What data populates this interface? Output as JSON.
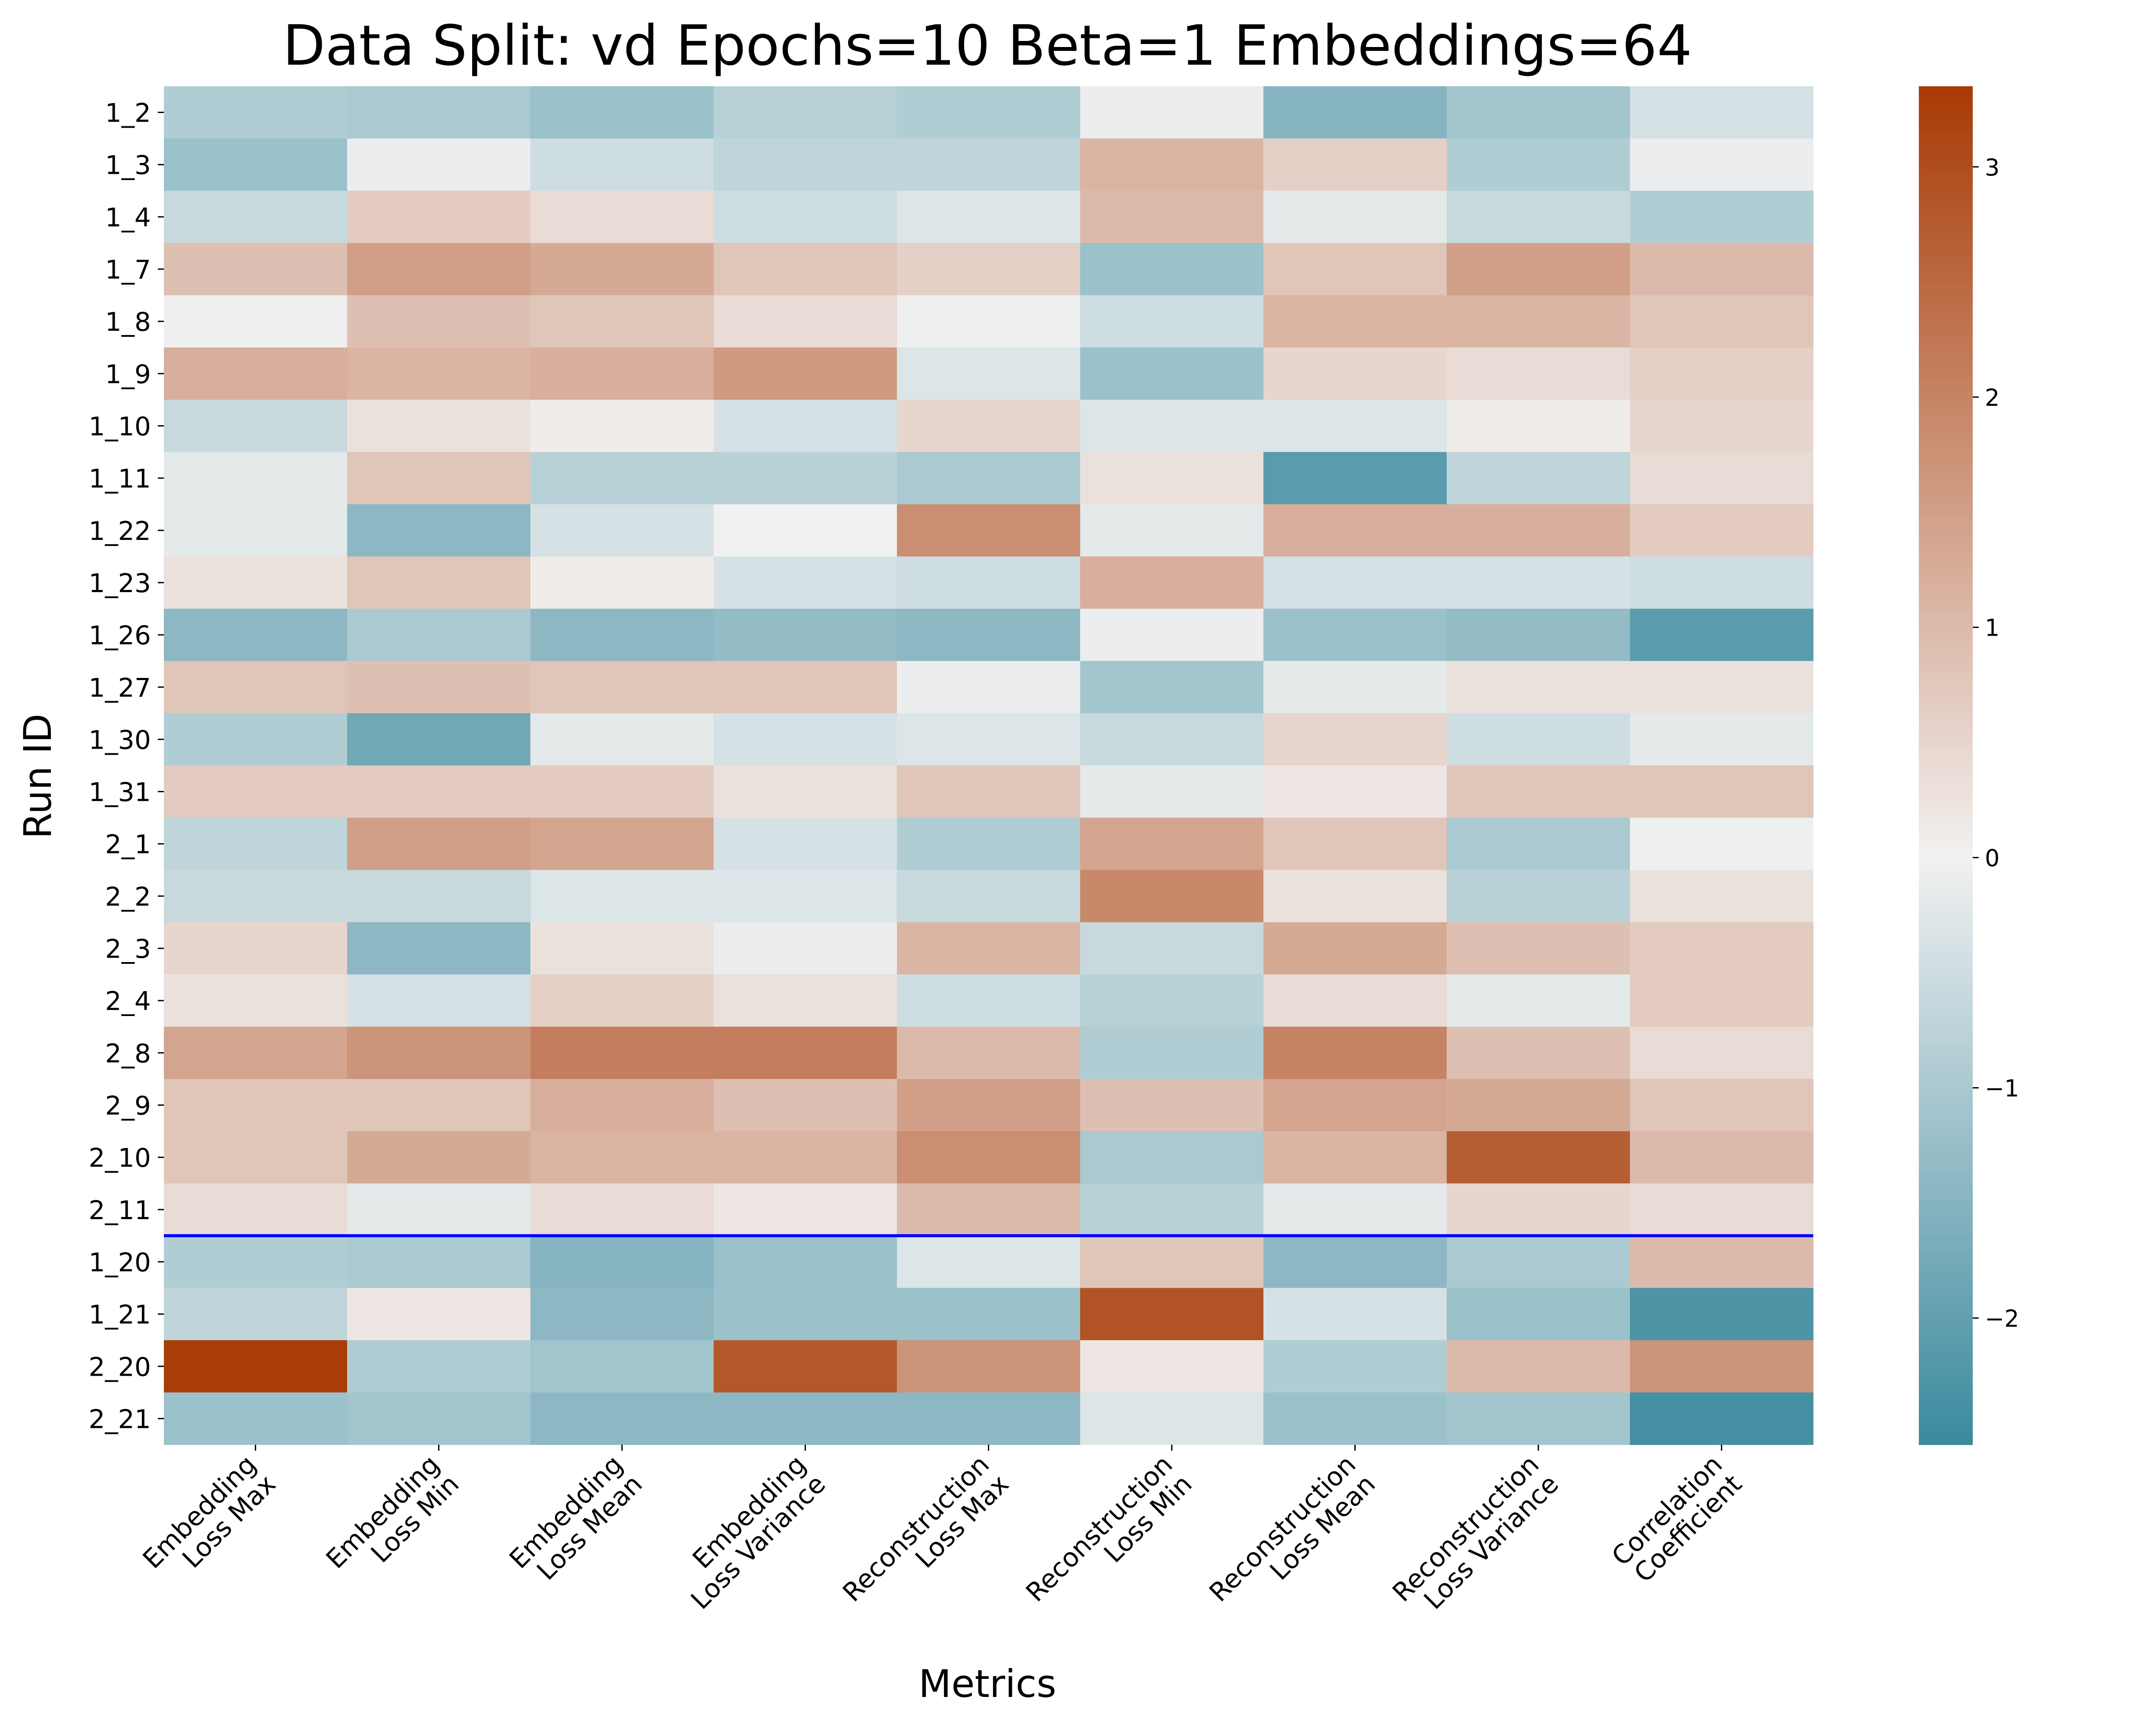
{
  "chart_data": {
    "type": "heatmap",
    "title": "Data Split: vd Epochs=10 Beta=1 Embeddings=64",
    "xlabel": "Metrics",
    "ylabel": "Run ID",
    "grid": false,
    "legend": "colorbar-right",
    "columns": [
      [
        "Embedding",
        "Loss Max"
      ],
      [
        "Embedding",
        "Loss Min"
      ],
      [
        "Embedding",
        "Loss Mean"
      ],
      [
        "Embedding",
        "Loss Variance"
      ],
      [
        "Reconstruction",
        "Loss Max"
      ],
      [
        "Reconstruction",
        "Loss Min"
      ],
      [
        "Reconstruction",
        "Loss Mean"
      ],
      [
        "Reconstruction",
        "Loss Variance"
      ],
      [
        "Correlation",
        "Coefficient"
      ]
    ],
    "rows": [
      "1_2",
      "1_3",
      "1_4",
      "1_7",
      "1_8",
      "1_9",
      "1_10",
      "1_11",
      "1_22",
      "1_23",
      "1_26",
      "1_27",
      "1_30",
      "1_31",
      "2_1",
      "2_2",
      "2_3",
      "2_4",
      "2_8",
      "2_9",
      "2_10",
      "2_11",
      "1_20",
      "1_21",
      "2_20",
      "2_21"
    ],
    "values": [
      [
        -0.9,
        -1.0,
        -1.2,
        -0.8,
        -0.9,
        -0.1,
        -1.5,
        -1.1,
        -0.4
      ],
      [
        -1.2,
        -0.1,
        -0.5,
        -0.7,
        -0.7,
        1.1,
        0.6,
        -0.9,
        -0.1
      ],
      [
        -0.6,
        0.7,
        0.4,
        -0.5,
        -0.3,
        1.0,
        -0.2,
        -0.6,
        -0.9
      ],
      [
        0.9,
        1.5,
        1.3,
        0.8,
        0.6,
        -1.2,
        0.8,
        1.5,
        1.0
      ],
      [
        -0.05,
        0.9,
        0.8,
        0.4,
        -0.05,
        -0.5,
        1.1,
        1.1,
        0.8
      ],
      [
        1.2,
        1.1,
        1.2,
        1.6,
        -0.3,
        -1.2,
        0.5,
        0.4,
        0.6
      ],
      [
        -0.6,
        0.3,
        0.1,
        -0.4,
        0.5,
        -0.3,
        -0.3,
        0.1,
        0.5
      ],
      [
        -0.2,
        0.8,
        -0.8,
        -0.8,
        -1.0,
        0.3,
        -2.1,
        -0.7,
        0.4
      ],
      [
        -0.2,
        -1.4,
        -0.4,
        0.0,
        1.8,
        -0.2,
        1.2,
        1.2,
        0.7
      ],
      [
        0.3,
        0.8,
        0.1,
        -0.4,
        -0.5,
        1.2,
        -0.4,
        -0.4,
        -0.5
      ],
      [
        -1.4,
        -1.0,
        -1.4,
        -1.3,
        -1.4,
        -0.1,
        -1.2,
        -1.3,
        -2.1
      ],
      [
        0.8,
        0.9,
        0.8,
        0.8,
        -0.1,
        -1.1,
        -0.2,
        0.3,
        0.3
      ],
      [
        -0.9,
        -1.8,
        -0.2,
        -0.4,
        -0.3,
        -0.6,
        0.5,
        -0.5,
        -0.2
      ],
      [
        0.7,
        0.7,
        0.7,
        0.3,
        0.8,
        -0.2,
        0.2,
        0.8,
        0.8
      ],
      [
        -0.7,
        1.5,
        1.4,
        -0.4,
        -0.9,
        1.4,
        0.8,
        -1.0,
        -0.05
      ],
      [
        -0.6,
        -0.6,
        -0.3,
        -0.3,
        -0.6,
        1.9,
        0.3,
        -0.8,
        0.3
      ],
      [
        0.5,
        -1.4,
        0.3,
        -0.1,
        1.1,
        -0.6,
        1.3,
        0.9,
        0.7
      ],
      [
        0.3,
        -0.4,
        0.6,
        0.3,
        -0.5,
        -0.8,
        0.4,
        -0.2,
        0.7
      ],
      [
        1.4,
        1.7,
        2.1,
        2.1,
        1.0,
        -0.9,
        2.0,
        0.9,
        0.4
      ],
      [
        0.8,
        0.8,
        1.2,
        0.9,
        1.5,
        0.9,
        1.4,
        1.3,
        0.8
      ],
      [
        0.8,
        1.3,
        1.1,
        1.1,
        1.8,
        -1.0,
        1.1,
        2.7,
        1.0
      ],
      [
        0.4,
        -0.2,
        0.4,
        0.2,
        1.0,
        -0.8,
        -0.2,
        0.5,
        0.4
      ],
      [
        -0.9,
        -1.0,
        -1.5,
        -1.2,
        -0.3,
        0.8,
        -1.4,
        -1.0,
        1.0
      ],
      [
        -0.7,
        0.2,
        -1.4,
        -1.2,
        -1.2,
        2.9,
        -0.4,
        -1.2,
        -2.3
      ],
      [
        3.3,
        -0.9,
        -1.1,
        2.8,
        1.7,
        0.2,
        -0.9,
        1.0,
        1.7
      ],
      [
        -1.2,
        -1.1,
        -1.4,
        -1.4,
        -1.4,
        -0.3,
        -1.2,
        -1.1,
        -2.4
      ]
    ],
    "separator": {
      "after_row": "2_11",
      "color": "#0000ff"
    },
    "colorbar": {
      "vmin": -2.55,
      "vmax": 3.35,
      "ticks": [
        3,
        2,
        1,
        0,
        -1,
        -2
      ],
      "tick_labels": [
        "3",
        "2",
        "1",
        "0",
        "−1",
        "−2"
      ],
      "colors": {
        "low": "#3a8a9e",
        "mid": "#f2f1f1",
        "high": "#a83a05"
      }
    }
  }
}
